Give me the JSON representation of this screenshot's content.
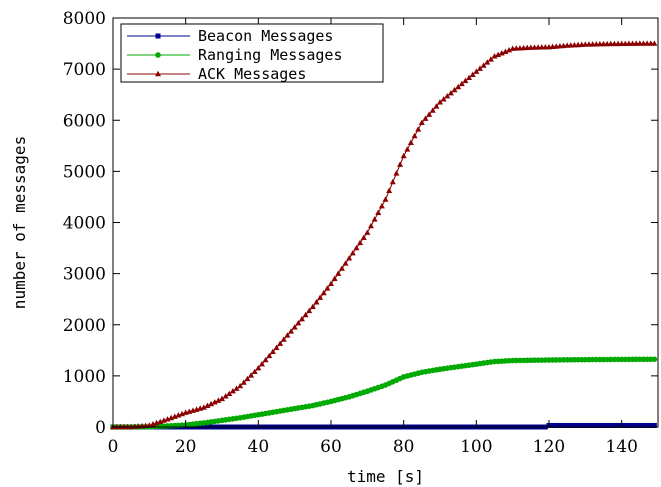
{
  "chart_data": {
    "type": "line",
    "title": "",
    "xlabel": "time [s]",
    "ylabel": "number of messages",
    "xlim": [
      0,
      150
    ],
    "ylim": [
      0,
      8000
    ],
    "xticks": [
      0,
      20,
      40,
      60,
      80,
      100,
      120,
      140
    ],
    "yticks": [
      0,
      1000,
      2000,
      3000,
      4000,
      5000,
      6000,
      7000,
      8000
    ],
    "grid": false,
    "legend_position": "top-left",
    "series": [
      {
        "name": "Beacon Messages",
        "color": "#00008b",
        "marker": "square",
        "x": [
          0,
          10,
          20,
          30,
          40,
          50,
          60,
          70,
          80,
          90,
          100,
          110,
          119,
          120,
          130,
          140,
          149
        ],
        "y": [
          0,
          0,
          0,
          0,
          0,
          0,
          0,
          0,
          0,
          0,
          0,
          0,
          0,
          30,
          30,
          30,
          30
        ]
      },
      {
        "name": "Ranging Messages",
        "color": "#00aa00",
        "marker": "circle",
        "x": [
          0,
          5,
          10,
          15,
          20,
          25,
          30,
          35,
          40,
          45,
          50,
          55,
          60,
          65,
          70,
          75,
          80,
          85,
          90,
          95,
          100,
          105,
          110,
          115,
          120,
          125,
          130,
          135,
          140,
          145,
          149
        ],
        "y": [
          0,
          0,
          5,
          20,
          40,
          80,
          130,
          180,
          240,
          300,
          360,
          420,
          500,
          590,
          700,
          820,
          980,
          1070,
          1130,
          1180,
          1230,
          1280,
          1300,
          1305,
          1310,
          1315,
          1318,
          1320,
          1322,
          1324,
          1325
        ]
      },
      {
        "name": "ACK Messages",
        "color": "#8b0000",
        "marker": "triangle",
        "x": [
          0,
          5,
          10,
          15,
          20,
          25,
          30,
          35,
          40,
          45,
          50,
          55,
          60,
          65,
          70,
          75,
          80,
          85,
          90,
          95,
          100,
          105,
          110,
          115,
          120,
          125,
          130,
          135,
          140,
          145,
          149
        ],
        "y": [
          0,
          0,
          30,
          150,
          280,
          380,
          550,
          800,
          1150,
          1550,
          1950,
          2350,
          2800,
          3300,
          3800,
          4450,
          5300,
          5950,
          6350,
          6650,
          6950,
          7250,
          7400,
          7420,
          7430,
          7460,
          7480,
          7490,
          7495,
          7500,
          7500
        ]
      }
    ]
  }
}
